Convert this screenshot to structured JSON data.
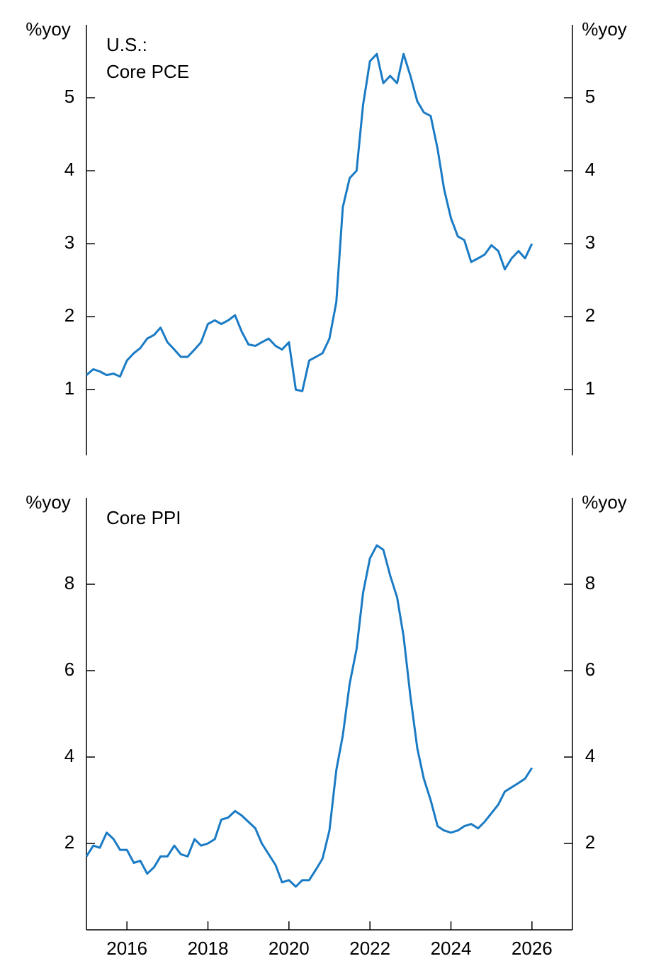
{
  "chart_data": [
    {
      "type": "line",
      "supertitle": "U.S.:",
      "title": "Core PCE",
      "ylabel": "%yoy",
      "y2label": "%yoy",
      "color": "#1a7bc4",
      "xlim": [
        2015,
        2027
      ],
      "ylim": [
        0.1,
        6
      ],
      "yticks": [
        1,
        2,
        3,
        4,
        5
      ],
      "y2lim": [
        0.1,
        6
      ],
      "y2ticks": [
        1,
        2,
        3,
        4,
        5
      ],
      "x": [
        2015,
        2015.17,
        2015.33,
        2015.5,
        2015.67,
        2015.83,
        2016,
        2016.17,
        2016.33,
        2016.5,
        2016.67,
        2016.83,
        2017,
        2017.17,
        2017.33,
        2017.5,
        2017.67,
        2017.83,
        2018,
        2018.17,
        2018.33,
        2018.5,
        2018.67,
        2018.83,
        2019,
        2019.17,
        2019.33,
        2019.5,
        2019.67,
        2019.83,
        2020,
        2020.17,
        2020.33,
        2020.5,
        2020.67,
        2020.83,
        2021,
        2021.17,
        2021.33,
        2021.5,
        2021.67,
        2021.83,
        2022,
        2022.17,
        2022.33,
        2022.5,
        2022.67,
        2022.83,
        2023,
        2023.17,
        2023.33,
        2023.5,
        2023.67,
        2023.83,
        2024,
        2024.17,
        2024.33,
        2024.5,
        2024.67,
        2024.83,
        2025,
        2025.17,
        2025.33,
        2025.5,
        2025.67,
        2025.83,
        2026
      ],
      "values": [
        1.2,
        1.28,
        1.25,
        1.2,
        1.22,
        1.18,
        1.4,
        1.5,
        1.57,
        1.7,
        1.75,
        1.85,
        1.65,
        1.55,
        1.45,
        1.45,
        1.55,
        1.65,
        1.9,
        1.95,
        1.9,
        1.95,
        2.02,
        1.8,
        1.62,
        1.6,
        1.65,
        1.7,
        1.6,
        1.55,
        1.65,
        1.0,
        0.98,
        1.4,
        1.45,
        1.5,
        1.7,
        2.2,
        3.5,
        3.9,
        4.0,
        4.9,
        5.5,
        5.6,
        5.2,
        5.3,
        5.2,
        5.6,
        5.3,
        4.95,
        4.8,
        4.75,
        4.3,
        3.75,
        3.35,
        3.1,
        3.05,
        2.75,
        2.8,
        2.85,
        2.98,
        2.9,
        2.65,
        2.8,
        2.9,
        2.8,
        3.0
      ]
    },
    {
      "type": "line",
      "title": "Core PPI",
      "ylabel": "%yoy",
      "y2label": "%yoy",
      "color": "#1a7bc4",
      "xlim": [
        2015,
        2027
      ],
      "xticks": [
        2016,
        2018,
        2020,
        2022,
        2024,
        2026
      ],
      "ylim": [
        0,
        10
      ],
      "yticks": [
        2,
        4,
        6,
        8
      ],
      "y2lim": [
        0,
        10
      ],
      "y2ticks": [
        2,
        4,
        6,
        8
      ],
      "x": [
        2015,
        2015.17,
        2015.33,
        2015.5,
        2015.67,
        2015.83,
        2016,
        2016.17,
        2016.33,
        2016.5,
        2016.67,
        2016.83,
        2017,
        2017.17,
        2017.33,
        2017.5,
        2017.67,
        2017.83,
        2018,
        2018.17,
        2018.33,
        2018.5,
        2018.67,
        2018.83,
        2019,
        2019.17,
        2019.33,
        2019.5,
        2019.67,
        2019.83,
        2020,
        2020.17,
        2020.33,
        2020.5,
        2020.67,
        2020.83,
        2021,
        2021.17,
        2021.33,
        2021.5,
        2021.67,
        2021.83,
        2022,
        2022.17,
        2022.33,
        2022.5,
        2022.67,
        2022.83,
        2023,
        2023.17,
        2023.33,
        2023.5,
        2023.67,
        2023.83,
        2024,
        2024.17,
        2024.33,
        2024.5,
        2024.67,
        2024.83,
        2025,
        2025.17,
        2025.33,
        2025.5,
        2025.67,
        2025.83,
        2026
      ],
      "values": [
        1.7,
        1.95,
        1.9,
        2.25,
        2.1,
        1.85,
        1.85,
        1.55,
        1.6,
        1.3,
        1.45,
        1.7,
        1.7,
        1.95,
        1.75,
        1.7,
        2.1,
        1.95,
        2.0,
        2.1,
        2.55,
        2.6,
        2.75,
        2.65,
        2.5,
        2.35,
        2.0,
        1.75,
        1.5,
        1.1,
        1.15,
        1.0,
        1.15,
        1.15,
        1.4,
        1.65,
        2.3,
        3.7,
        4.5,
        5.7,
        6.5,
        7.8,
        8.6,
        8.9,
        8.8,
        8.2,
        7.7,
        6.8,
        5.4,
        4.2,
        3.5,
        3.0,
        2.4,
        2.3,
        2.25,
        2.3,
        2.4,
        2.45,
        2.35,
        2.5,
        2.7,
        2.9,
        3.2,
        3.3,
        3.4,
        3.5,
        3.75
      ]
    }
  ]
}
